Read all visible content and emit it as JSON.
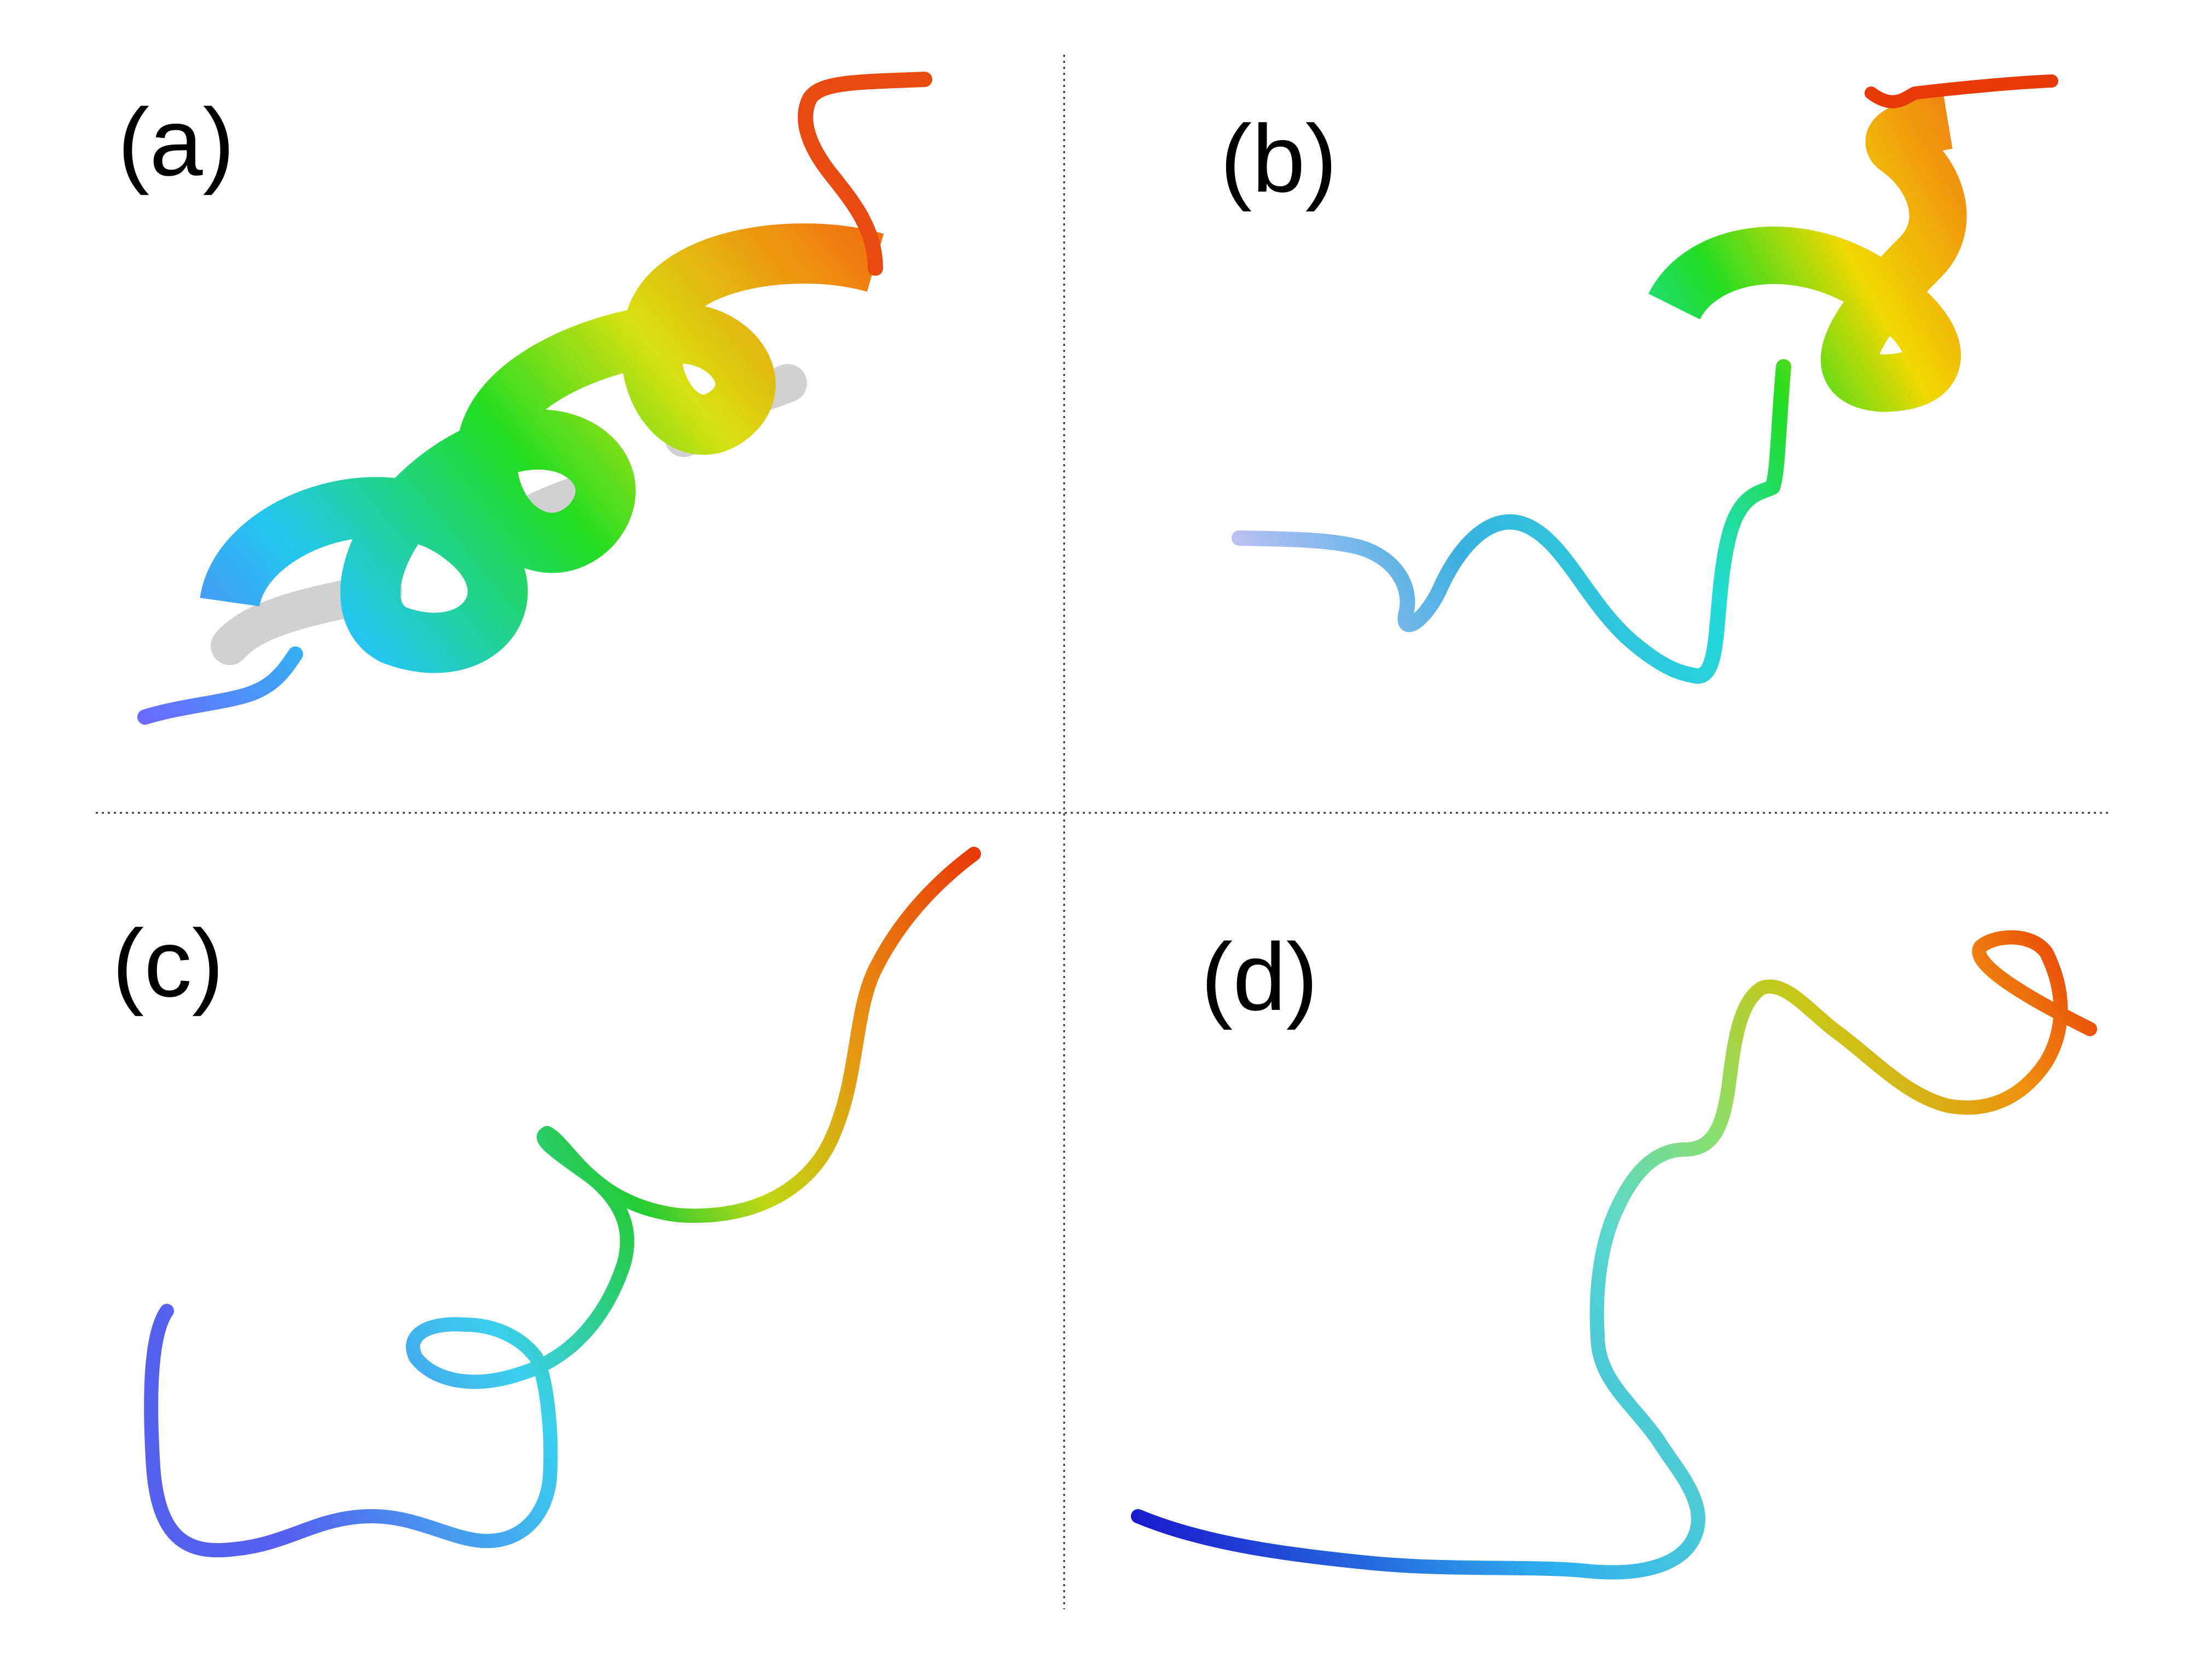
{
  "panels": [
    {
      "id": "a",
      "label": "(a)"
    },
    {
      "id": "b",
      "label": "(b)"
    },
    {
      "id": "c",
      "label": "(c)"
    },
    {
      "id": "d",
      "label": "(d)"
    }
  ],
  "colors": {
    "n_terminus": "#3333ff",
    "blue_light": "#8c9cf5",
    "cyan": "#22d6e6",
    "green": "#22dd22",
    "yellow_green": "#b6e01a",
    "yellow": "#f0d000",
    "orange": "#f08a10",
    "c_terminus": "#e83a08"
  }
}
